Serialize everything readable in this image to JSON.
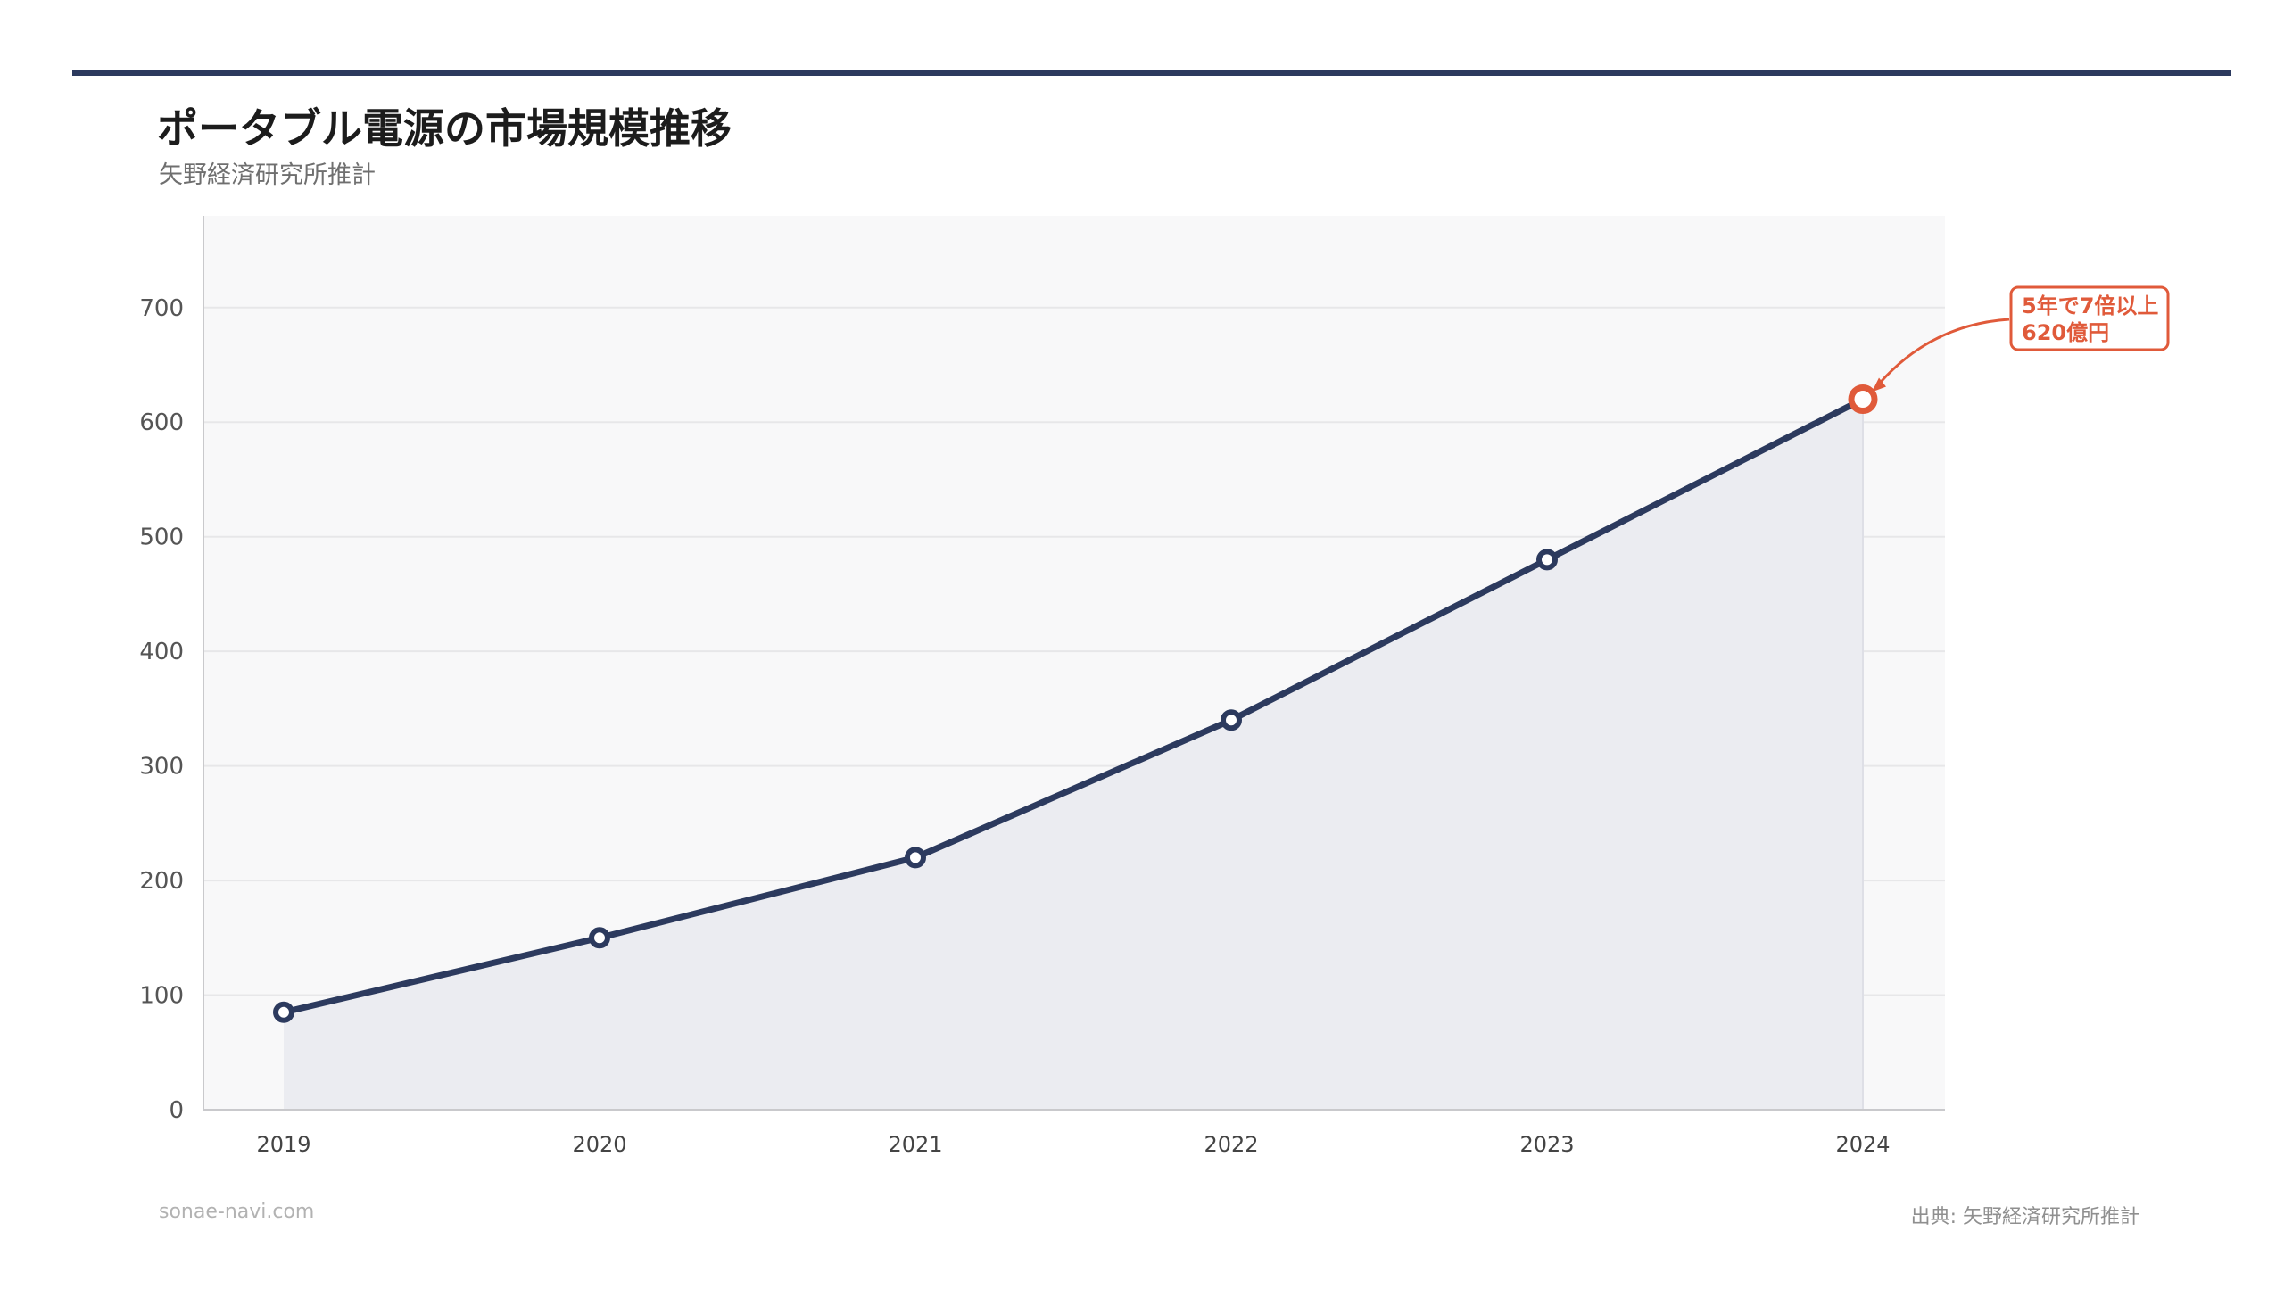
{
  "header": {
    "title": "ポータブル電源の市場規模推移",
    "subtitle": "矢野経済研究所推計"
  },
  "footer": {
    "site": "sonae-navi.com",
    "source": "出典: 矢野経済研究所推計"
  },
  "colors": {
    "line": "#2c3a5e",
    "area": "#ebecf1",
    "plot_bg": "#f8f8f9",
    "highlight": "#e05a3a"
  },
  "chart_data": {
    "type": "area",
    "x": [
      "2019",
      "2020",
      "2021",
      "2022",
      "2023",
      "2024"
    ],
    "series": [
      {
        "values": [
          85,
          150,
          220,
          340,
          480,
          620
        ]
      }
    ],
    "ylim": [
      0,
      780
    ],
    "yticks": [
      0,
      100,
      200,
      300,
      400,
      500,
      600,
      700
    ],
    "grid": true,
    "highlight_index": 5,
    "annotation": {
      "lines": [
        "5年で7倍以上",
        "620億円"
      ],
      "target_index": 5
    }
  }
}
